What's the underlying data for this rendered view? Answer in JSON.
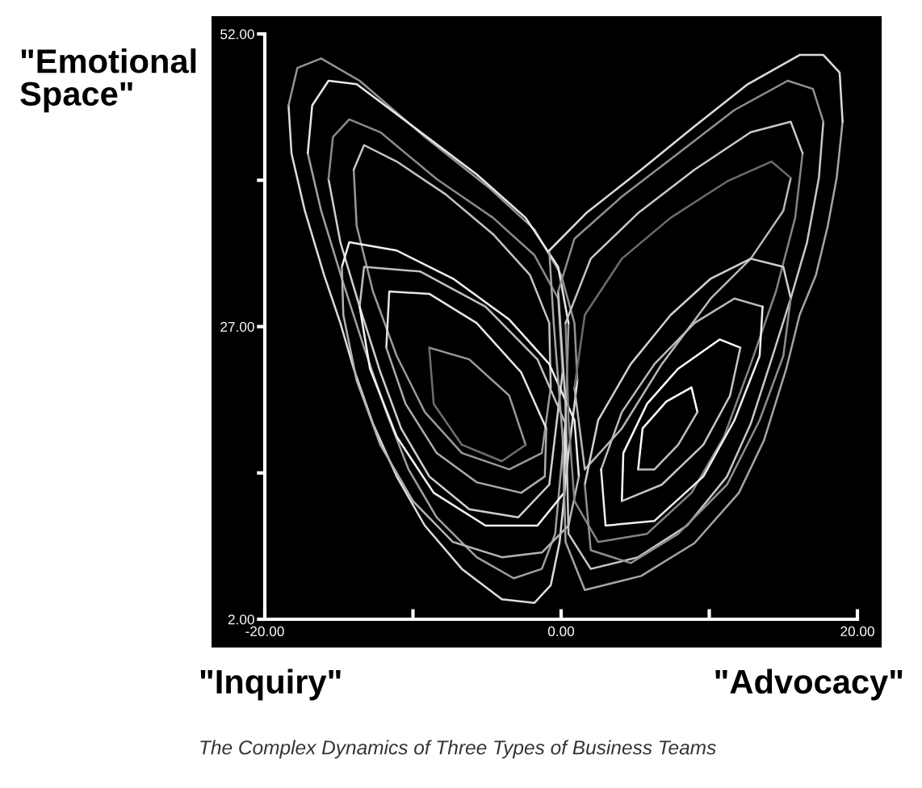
{
  "chart_data": {
    "type": "line",
    "ylabel": "\"Emotional\nSpace\"",
    "annotations": [
      "\"Inquiry\"",
      "\"Advocacy\"",
      "The Complex Dynamics of Three Types of Business Teams"
    ],
    "xlim": [
      -20,
      20
    ],
    "ylim": [
      2,
      52
    ],
    "xticks": [
      {
        "value": -20,
        "label": "-20.00"
      },
      {
        "value": -10,
        "label": null
      },
      {
        "value": 0,
        "label": "0.00"
      },
      {
        "value": 10,
        "label": null
      },
      {
        "value": 20,
        "label": "20.00"
      }
    ],
    "yticks": [
      {
        "value": 2,
        "label": "2.00"
      },
      {
        "value": 14.5,
        "label": null
      },
      {
        "value": 27,
        "label": "27.00"
      },
      {
        "value": 39.5,
        "label": null
      },
      {
        "value": 52,
        "label": "52.00"
      }
    ],
    "series": [
      {
        "color": "#dcdcdc",
        "x": [
          -18.4,
          -18.2,
          -17.3,
          -16.0,
          -14.9,
          -14.0,
          -12.7,
          -11.1,
          -9.2,
          -6.7,
          -4.0,
          -1.8,
          -0.7,
          -0.1,
          0.5,
          1.1
        ],
        "values": [
          45.9,
          41.8,
          36.9,
          31.4,
          27.3,
          23.4,
          18.7,
          14.2,
          10.0,
          6.3,
          3.7,
          3.4,
          4.9,
          8.6,
          16.2,
          22.4
        ]
      },
      {
        "color": "#949494",
        "x": [
          -18.4,
          -17.8,
          -16.2,
          -13.6,
          -9.2,
          -4.9,
          -1.8,
          0.0,
          0.9,
          1.1
        ],
        "values": [
          45.9,
          49.1,
          49.9,
          48.0,
          43.2,
          38.9,
          35.3,
          31.4,
          27.3,
          22.4
        ]
      },
      {
        "color": "#a0a0a0",
        "x": [
          -17.1,
          -16.2,
          -14.7,
          -13.3,
          -11.8,
          -10.3,
          -8.4,
          -5.7,
          -3.2,
          -1.3,
          -0.4,
          0.3,
          0.5
        ],
        "values": [
          41.8,
          36.9,
          30.7,
          25.2,
          19.7,
          14.8,
          10.7,
          7.3,
          5.5,
          6.3,
          9.3,
          19.0,
          27.3
        ]
      },
      {
        "color": "#e8e8e8",
        "x": [
          -17.1,
          -16.8,
          -15.7,
          -13.8,
          -10.0,
          -5.7,
          -2.4,
          -0.2,
          0.5
        ],
        "values": [
          41.8,
          45.9,
          48.0,
          47.7,
          44.1,
          40.0,
          36.3,
          32.1,
          27.3
        ]
      },
      {
        "color": "#d0d0d0",
        "x": [
          -15.7,
          -14.9,
          -13.6,
          -12.2,
          -10.8,
          -8.9,
          -6.2,
          -2.9,
          -0.8,
          0.1
        ],
        "values": [
          39.6,
          34.2,
          28.7,
          23.1,
          18.3,
          14.2,
          11.4,
          10.7,
          13.5,
          23.1
        ]
      },
      {
        "color": "#8a8a8a",
        "x": [
          -15.7,
          -15.4,
          -14.3,
          -12.2,
          -8.4,
          -4.6,
          -1.8,
          -0.2,
          0.1
        ],
        "values": [
          39.6,
          43.2,
          44.7,
          43.6,
          39.6,
          36.3,
          33.1,
          29.4,
          23.1
        ]
      },
      {
        "color": "#9a9a9a",
        "x": [
          -14.0,
          -13.8,
          -12.7,
          -11.1,
          -9.2,
          -6.7,
          -3.5,
          -1.3,
          -0.7
        ],
        "values": [
          40.4,
          35.6,
          30.0,
          24.5,
          19.7,
          16.2,
          14.8,
          16.2,
          21.8
        ]
      },
      {
        "color": "#c4c4c4",
        "x": [
          -14.0,
          -13.3,
          -11.1,
          -7.8,
          -4.6,
          -2.1,
          -0.8,
          -0.7
        ],
        "values": [
          40.4,
          42.5,
          41.1,
          38.3,
          34.9,
          31.4,
          27.3,
          21.8
        ]
      },
      {
        "color": "#f0f0f0",
        "x": [
          -14.8,
          -14.3,
          -11.1,
          -7.3,
          -3.5,
          -0.8,
          0.9,
          1.2
        ],
        "values": [
          32.1,
          34.2,
          33.5,
          31.1,
          27.6,
          23.8,
          19.0,
          14.2
        ]
      },
      {
        "color": "#b4b4b4",
        "x": [
          -14.8,
          -14.7,
          -13.8,
          -12.2,
          -10.0,
          -7.3,
          -4.0,
          -1.3,
          0.5,
          1.2
        ],
        "values": [
          32.1,
          28.0,
          22.4,
          16.9,
          12.1,
          8.6,
          7.3,
          7.7,
          10.0,
          14.2
        ]
      },
      {
        "color": "#c0c0c0",
        "x": [
          -13.6,
          -13.3,
          -9.5,
          -5.1,
          -1.6,
          0.3
        ],
        "values": [
          28.7,
          32.1,
          31.7,
          28.7,
          24.2,
          18.7
        ]
      },
      {
        "color": "#f4f4f4",
        "x": [
          -13.6,
          -12.9,
          -11.1,
          -8.6,
          -5.1,
          -1.6,
          0.2,
          0.3
        ],
        "values": [
          28.7,
          23.4,
          17.6,
          12.8,
          10.0,
          10.0,
          12.8,
          18.7
        ]
      },
      {
        "color": "#e4e4e4",
        "x": [
          -11.8,
          -11.6,
          -8.9,
          -5.7,
          -2.7,
          -1.0
        ],
        "values": [
          25.2,
          30.0,
          29.8,
          27.3,
          23.1,
          18.3
        ]
      },
      {
        "color": "#acacac",
        "x": [
          -11.8,
          -10.5,
          -8.4,
          -5.7,
          -2.7,
          -1.1,
          -1.0
        ],
        "values": [
          25.2,
          20.4,
          16.2,
          13.7,
          12.8,
          14.2,
          18.3
        ]
      },
      {
        "color": "#9a9a9a",
        "x": [
          -8.9,
          -6.2,
          -3.5,
          -2.4
        ],
        "values": [
          25.2,
          24.2,
          21.1,
          16.9
        ]
      },
      {
        "color": "#6e6e6e",
        "x": [
          -8.9,
          -8.6,
          -6.7,
          -4.0,
          -2.4
        ],
        "values": [
          25.2,
          20.4,
          16.9,
          15.5,
          16.9
        ]
      },
      {
        "color": "#a4a4a4",
        "x": [
          -0.8,
          -0.5,
          0.1,
          0.3,
          1.6,
          5.4,
          9.0,
          12.0,
          13.7,
          15.2,
          16.1,
          17.2,
          18.0,
          18.6,
          19.0
        ],
        "values": [
          33.5,
          27.3,
          17.6,
          8.6,
          4.5,
          5.7,
          8.5,
          12.8,
          17.3,
          23.4,
          28.0,
          31.4,
          35.6,
          39.7,
          44.5
        ]
      },
      {
        "color": "#dcdcdc",
        "x": [
          -0.8,
          1.7,
          5.4,
          9.0,
          12.6,
          16.1,
          17.7,
          18.8,
          19.0
        ],
        "values": [
          33.5,
          36.7,
          40.4,
          44.1,
          47.7,
          50.2,
          50.2,
          48.7,
          44.5
        ]
      },
      {
        "color": "#c8c8c8",
        "x": [
          -0.2,
          0.3,
          0.5,
          2.0,
          5.2,
          8.5,
          11.2,
          12.8,
          14.2,
          15.5,
          16.6,
          17.4,
          17.7
        ],
        "values": [
          30.0,
          20.4,
          9.3,
          6.3,
          7.3,
          10.0,
          14.2,
          18.7,
          24.2,
          29.4,
          34.2,
          39.7,
          44.5
        ]
      },
      {
        "color": "#909090",
        "x": [
          -0.2,
          0.9,
          4.1,
          7.9,
          11.7,
          15.3,
          17.0,
          17.7
        ],
        "values": [
          30.0,
          34.5,
          38.1,
          41.8,
          45.5,
          48.0,
          47.3,
          44.5
        ]
      },
      {
        "color": "#848484",
        "x": [
          0.3,
          0.5,
          0.9,
          2.5,
          5.8,
          8.8,
          11.0,
          12.8,
          14.5,
          15.8,
          16.3
        ],
        "values": [
          27.3,
          19.0,
          12.1,
          8.6,
          9.3,
          12.8,
          17.6,
          23.8,
          30.0,
          36.3,
          41.8
        ]
      },
      {
        "color": "#c8c8c8",
        "x": [
          0.3,
          2.0,
          5.2,
          9.0,
          12.8,
          15.5,
          16.3
        ],
        "values": [
          27.3,
          32.8,
          36.7,
          40.4,
          43.6,
          44.5,
          41.8
        ]
      },
      {
        "color": "#b8b8b8",
        "x": [
          0.9,
          1.6,
          4.1,
          6.8,
          10.1,
          12.8,
          15.0,
          15.5
        ],
        "values": [
          21.8,
          14.8,
          18.3,
          23.8,
          29.4,
          32.8,
          36.9,
          39.7
        ]
      },
      {
        "color": "#6c6c6c",
        "x": [
          0.9,
          1.6,
          4.1,
          7.4,
          11.2,
          14.2,
          15.5
        ],
        "values": [
          21.8,
          28.0,
          32.8,
          36.3,
          39.4,
          41.1,
          39.7
        ]
      },
      {
        "color": "#d0d0d0",
        "x": [
          1.6,
          2.5,
          4.7,
          7.4,
          10.1,
          12.8,
          15.0,
          15.5
        ],
        "values": [
          13.5,
          19.0,
          23.8,
          28.0,
          31.1,
          32.8,
          32.1,
          29.4
        ]
      },
      {
        "color": "#8e8e8e",
        "x": [
          1.6,
          2.0,
          4.7,
          7.9,
          11.2,
          13.4,
          15.0,
          15.5
        ],
        "values": [
          13.5,
          7.9,
          6.8,
          9.3,
          13.5,
          19.0,
          24.5,
          29.4
        ]
      },
      {
        "color": "#bcbcbc",
        "x": [
          2.7,
          4.1,
          6.3,
          9.0,
          11.7,
          13.6
        ],
        "values": [
          14.8,
          19.7,
          23.8,
          27.3,
          29.4,
          28.7
        ]
      },
      {
        "color": "#f0f0f0",
        "x": [
          2.7,
          3.0,
          6.3,
          9.6,
          11.7,
          13.4,
          13.6
        ],
        "values": [
          14.8,
          10.0,
          10.4,
          14.2,
          19.0,
          24.5,
          28.7
        ]
      },
      {
        "color": "#ffffff",
        "x": [
          4.1,
          4.2,
          5.8,
          7.9,
          10.7,
          12.1
        ],
        "values": [
          12.1,
          16.2,
          20.4,
          23.4,
          25.9,
          25.2
        ]
      },
      {
        "color": "#c4c4c4",
        "x": [
          4.1,
          6.8,
          9.6,
          11.4,
          12.1
        ],
        "values": [
          12.1,
          13.5,
          16.9,
          21.1,
          25.2
        ]
      },
      {
        "color": "#ffffff",
        "x": [
          5.2,
          5.5,
          7.1,
          8.8,
          9.2
        ],
        "values": [
          14.8,
          18.3,
          20.6,
          21.8,
          19.7
        ]
      },
      {
        "color": "#c0c0c0",
        "x": [
          5.2,
          6.3,
          7.9,
          9.2
        ],
        "values": [
          14.8,
          14.8,
          16.9,
          19.7
        ]
      }
    ]
  }
}
